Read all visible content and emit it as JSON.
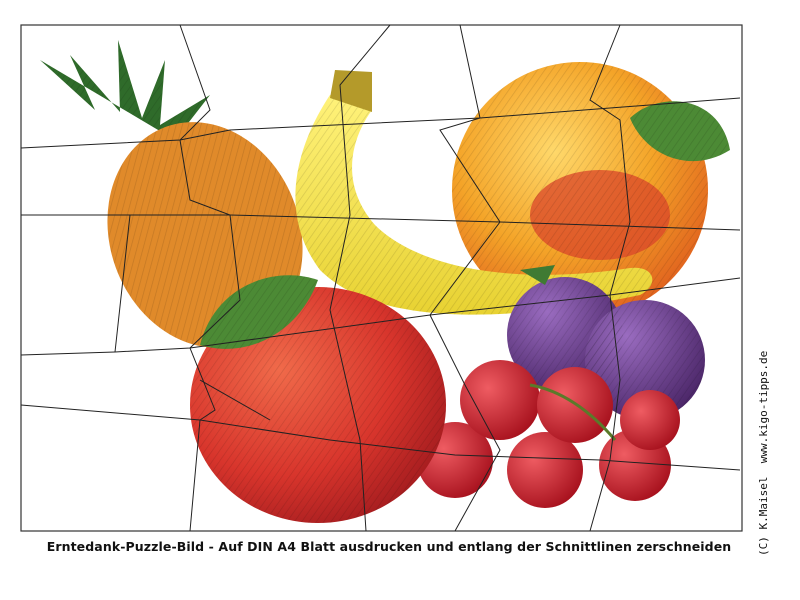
{
  "caption": "Erntedank-Puzzle-Bild - Auf DIN A4 Blatt ausdrucken und entlang der Schnittlinen zerschneiden",
  "credit": "(C) K.Maisel  www.kigo-tipps.de",
  "picture": {
    "subject": [
      "pineapple",
      "banana",
      "orange",
      "apple",
      "plums",
      "cherries"
    ],
    "colors": {
      "pineapple": "#e08a2a",
      "pineapple_leaves": "#2f6b2a",
      "banana": "#f2e24a",
      "orange": "#f4a428",
      "orange_blush": "#d9452a",
      "apple": "#d8352c",
      "leaf": "#4c8a35",
      "plum": "#6e3c8c",
      "cherry": "#c8202e",
      "cut_line": "#222222"
    }
  }
}
